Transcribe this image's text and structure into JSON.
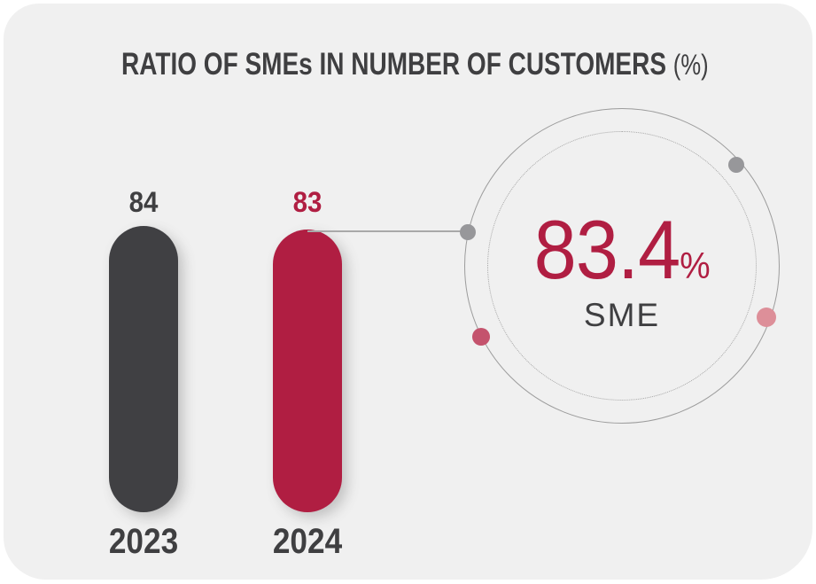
{
  "title": {
    "main": "RATIO OF SMEs IN NUMBER OF CUSTOMERS",
    "suffix": "(%)"
  },
  "bars": [
    {
      "year": "2023",
      "value": "84",
      "color": "#404043",
      "value_color": "#3f3f41"
    },
    {
      "year": "2024",
      "value": "83",
      "color": "#b01e42",
      "value_color": "#b01e42"
    }
  ],
  "badge": {
    "value": "83.4",
    "unit": "%",
    "label": "SME"
  },
  "colors": {
    "accent_crimson": "#b01e42",
    "dark_gray": "#404043",
    "text_dark": "#3f3f41",
    "card_bg": "#f0f0f0",
    "page_bg": "#ffffff",
    "connector_line": "#a9a9a9",
    "ring_stroke": "#9c9c9c",
    "dot_gray": "#97979a",
    "dot_pink": "#dd8f99",
    "dot_rose": "#c4536d"
  },
  "chart_data": {
    "type": "bar",
    "title": "RATIO OF SMEs IN NUMBER OF CUSTOMERS (%)",
    "categories": [
      "2023",
      "2024"
    ],
    "values": [
      84,
      83
    ],
    "ylim": [
      0,
      84
    ],
    "bar_colors": [
      "#404043",
      "#b01e42"
    ],
    "grid": false,
    "legend": false,
    "annotation": {
      "value": "83.4",
      "unit": "%",
      "label": "SME",
      "attached_to": "2024"
    }
  }
}
